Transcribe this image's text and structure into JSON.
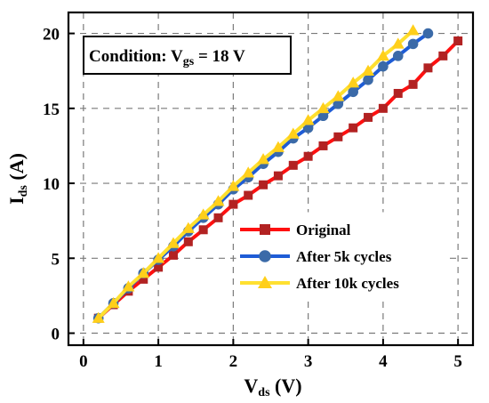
{
  "chart_data": {
    "type": "line",
    "xlabel": {
      "main": "V",
      "sub": "ds",
      "unit": " (V)"
    },
    "ylabel": {
      "main": "I",
      "sub": "ds",
      "unit": " (A)"
    },
    "xlim": [
      -0.2,
      5.2
    ],
    "ylim": [
      -0.8,
      21.4
    ],
    "xticks": [
      0,
      1,
      2,
      3,
      4,
      5
    ],
    "yticks": [
      0,
      5,
      10,
      15,
      20
    ],
    "grid": true,
    "legend_position": "lower-right",
    "annotation": {
      "prefix": "Condition: V",
      "sub": "gs",
      "suffix": " = 18 V"
    },
    "series": [
      {
        "name": "Original",
        "color": "#ff1010",
        "marker": "square",
        "marker_color": "#b22222",
        "x": [
          0.2,
          0.4,
          0.6,
          0.8,
          1.0,
          1.2,
          1.4,
          1.6,
          1.8,
          2.0,
          2.2,
          2.4,
          2.6,
          2.8,
          3.0,
          3.2,
          3.4,
          3.6,
          3.8,
          4.0,
          4.2,
          4.4,
          4.6,
          4.8,
          5.0
        ],
        "y": [
          1.0,
          1.9,
          2.8,
          3.6,
          4.4,
          5.2,
          6.1,
          6.9,
          7.7,
          8.6,
          9.2,
          9.9,
          10.5,
          11.2,
          11.8,
          12.5,
          13.1,
          13.7,
          14.4,
          15.0,
          16.0,
          16.6,
          17.7,
          18.5,
          19.5
        ]
      },
      {
        "name": "After 5k cycles",
        "color": "#1e5cd6",
        "marker": "circle",
        "marker_color": "#3b6aa8",
        "x": [
          0.2,
          0.4,
          0.6,
          0.8,
          1.0,
          1.2,
          1.4,
          1.6,
          1.8,
          2.0,
          2.2,
          2.4,
          2.6,
          2.8,
          3.0,
          3.2,
          3.4,
          3.6,
          3.8,
          4.0,
          4.2,
          4.4,
          4.6
        ],
        "y": [
          1.0,
          2.0,
          3.0,
          4.0,
          4.9,
          5.8,
          6.8,
          7.7,
          8.6,
          9.6,
          10.4,
          11.3,
          12.1,
          13.0,
          13.7,
          14.5,
          15.3,
          16.1,
          16.9,
          17.8,
          18.5,
          19.3,
          20.0
        ]
      },
      {
        "name": "After 10k cycles",
        "color": "#ffe030",
        "marker": "triangle",
        "marker_color": "#ffcf1a",
        "x": [
          0.2,
          0.4,
          0.6,
          0.8,
          1.0,
          1.2,
          1.4,
          1.6,
          1.8,
          2.0,
          2.2,
          2.4,
          2.6,
          2.8,
          3.0,
          3.2,
          3.4,
          3.6,
          3.8,
          4.0,
          4.2,
          4.4
        ],
        "y": [
          1.0,
          2.0,
          3.1,
          4.0,
          5.0,
          6.0,
          7.0,
          7.9,
          8.8,
          9.8,
          10.7,
          11.6,
          12.4,
          13.3,
          14.2,
          15.0,
          15.8,
          16.7,
          17.5,
          18.5,
          19.3,
          20.2
        ]
      }
    ]
  }
}
